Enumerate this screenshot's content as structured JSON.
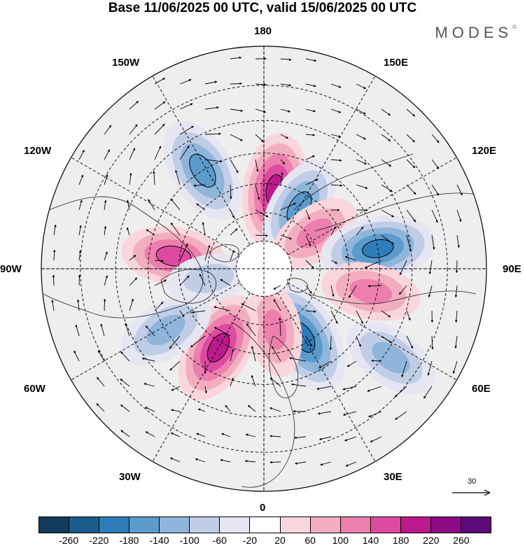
{
  "title": "Base 11/06/2025 00 UTC, valid 15/06/2025 00 UTC",
  "brand": "MODES",
  "brand_mark": "©",
  "longitude_labels": {
    "top": "180",
    "bottom": "0",
    "left": "90W",
    "right": "90E",
    "upper_left_1": "150W",
    "upper_left_2": "120W",
    "lower_left_1": "60W",
    "lower_left_2": "30W",
    "upper_right_1": "150E",
    "upper_right_2": "120E",
    "lower_right_1": "60E",
    "lower_right_2": "30E"
  },
  "reference_vector": {
    "value": "30"
  },
  "colorbar": {
    "colors": [
      "#123a5c",
      "#1c5c8c",
      "#2f7cb8",
      "#5a9bcc",
      "#8fb5da",
      "#c0cde6",
      "#e6e6f2",
      "#ffffff",
      "#f8d6dc",
      "#f2aec0",
      "#ec7fae",
      "#de4aa2",
      "#bc1a8c",
      "#8f0a86",
      "#5c0a78"
    ],
    "tick_labels": [
      "-260",
      "-220",
      "-180",
      "-140",
      "-100",
      "-60",
      "-20",
      "20",
      "60",
      "100",
      "140",
      "180",
      "220",
      "260"
    ]
  },
  "anomaly_centers": [
    {
      "sign": "positive",
      "value": 180,
      "lon": 172,
      "colat": 28
    },
    {
      "sign": "negative",
      "value": -160,
      "lon": -148,
      "colat": 40
    },
    {
      "sign": "negative",
      "value": -140,
      "lon": 150,
      "colat": 25
    },
    {
      "sign": "positive",
      "value": 100,
      "lon": 125,
      "colat": 22
    },
    {
      "sign": "negative",
      "value": -180,
      "lon": 100,
      "colat": 40
    },
    {
      "sign": "positive",
      "value": 120,
      "lon": 78,
      "colat": 38
    },
    {
      "sign": "negative",
      "value": -120,
      "lon": 55,
      "colat": 52
    },
    {
      "sign": "negative",
      "value": -200,
      "lon": 30,
      "colat": 28
    },
    {
      "sign": "positive",
      "value": 100,
      "lon": 10,
      "colat": 22
    },
    {
      "sign": "positive",
      "value": 180,
      "lon": -30,
      "colat": 32
    },
    {
      "sign": "negative",
      "value": -120,
      "lon": -58,
      "colat": 40
    },
    {
      "sign": "positive",
      "value": 140,
      "lon": -98,
      "colat": 32
    },
    {
      "sign": "negative",
      "value": -60,
      "lon": -80,
      "colat": 20
    }
  ]
}
